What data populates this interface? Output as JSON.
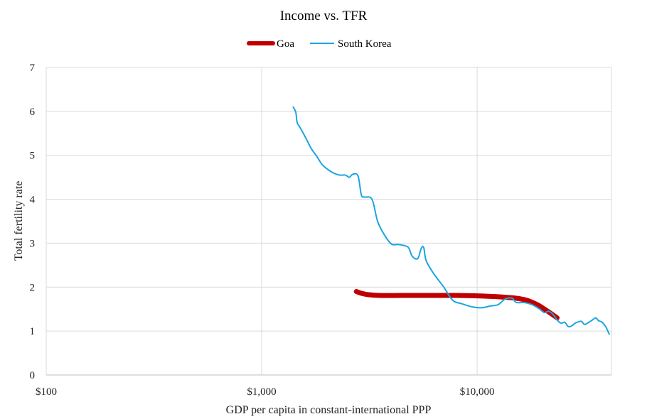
{
  "chart_data": {
    "type": "line",
    "title": "Income vs. TFR",
    "xlabel": "GDP per capita in constant-international PPP",
    "ylabel": "Total fertility rate",
    "x_scale": "log",
    "xlim": [
      100,
      42000
    ],
    "ylim": [
      0,
      7
    ],
    "x_ticks": [
      100,
      1000,
      10000
    ],
    "x_tick_labels": [
      "$100",
      "$1,000",
      "$10,000"
    ],
    "y_ticks": [
      0,
      1,
      2,
      3,
      4,
      5,
      6,
      7
    ],
    "y_tick_labels": [
      "0",
      "1",
      "2",
      "3",
      "4",
      "5",
      "6",
      "7"
    ],
    "grid": true,
    "legend_position": "top-center",
    "series": [
      {
        "name": "Goa",
        "color": "#c00000",
        "x": [
          2750,
          2900,
          3100,
          3500,
          4500,
          6000,
          8000,
          10000,
          12500,
          15000,
          17000,
          19000,
          20500,
          22000,
          23500
        ],
        "y": [
          1.9,
          1.86,
          1.83,
          1.81,
          1.81,
          1.81,
          1.81,
          1.8,
          1.78,
          1.75,
          1.7,
          1.6,
          1.5,
          1.4,
          1.3
        ]
      },
      {
        "name": "South Korea",
        "color": "#1ba5e0",
        "x": [
          1400,
          1440,
          1460,
          1500,
          1560,
          1620,
          1700,
          1800,
          1900,
          2000,
          2150,
          2300,
          2450,
          2550,
          2650,
          2800,
          2900,
          3000,
          3250,
          3450,
          3700,
          4000,
          4300,
          4550,
          4800,
          5000,
          5300,
          5500,
          5650,
          5800,
          6300,
          7000,
          7700,
          8500,
          9500,
          10500,
          11500,
          12500,
          13500,
          14500,
          15200,
          16500,
          18000,
          19500,
          20500,
          21500,
          22500,
          23500,
          24500,
          25500,
          26500,
          27500,
          28500,
          29500,
          30500,
          31500,
          33000,
          34000,
          35500,
          36500,
          38000,
          39500,
          41000
        ],
        "y": [
          6.1,
          5.98,
          5.75,
          5.65,
          5.5,
          5.35,
          5.15,
          4.98,
          4.8,
          4.7,
          4.6,
          4.55,
          4.55,
          4.5,
          4.57,
          4.53,
          4.1,
          4.05,
          4.0,
          3.5,
          3.2,
          2.98,
          2.97,
          2.95,
          2.9,
          2.7,
          2.65,
          2.88,
          2.9,
          2.6,
          2.3,
          2.0,
          1.7,
          1.62,
          1.55,
          1.53,
          1.57,
          1.6,
          1.73,
          1.75,
          1.65,
          1.65,
          1.6,
          1.5,
          1.42,
          1.45,
          1.38,
          1.25,
          1.18,
          1.2,
          1.1,
          1.12,
          1.18,
          1.21,
          1.22,
          1.15,
          1.2,
          1.24,
          1.3,
          1.24,
          1.2,
          1.1,
          0.93
        ]
      }
    ]
  }
}
